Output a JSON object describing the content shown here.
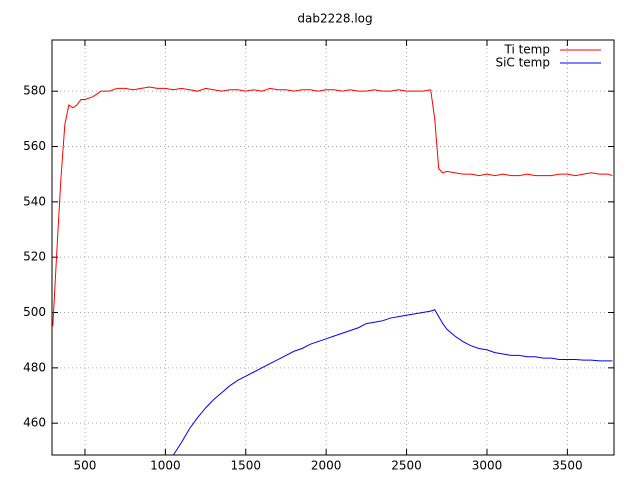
{
  "chart_data": {
    "type": "line",
    "title": "dab2228.log",
    "x": [
      300,
      325,
      350,
      375,
      400,
      425,
      450,
      475,
      500,
      550,
      600,
      650,
      700,
      750,
      800,
      850,
      900,
      950,
      1000,
      1050,
      1100,
      1150,
      1200,
      1250,
      1300,
      1350,
      1400,
      1450,
      1500,
      1550,
      1600,
      1650,
      1700,
      1750,
      1800,
      1850,
      1900,
      1950,
      2000,
      2050,
      2100,
      2150,
      2200,
      2250,
      2300,
      2350,
      2400,
      2450,
      2500,
      2550,
      2600,
      2650,
      2675,
      2700,
      2725,
      2750,
      2800,
      2850,
      2900,
      2950,
      3000,
      3050,
      3100,
      3150,
      3200,
      3250,
      3300,
      3350,
      3400,
      3450,
      3500,
      3550,
      3600,
      3650,
      3700,
      3750,
      3780
    ],
    "series": [
      {
        "name": "Ti temp",
        "color": "#ff0000",
        "values": [
          495,
          522,
          548,
          568,
          575,
          574,
          575,
          577,
          577,
          578,
          580,
          580,
          581,
          581,
          580.5,
          581,
          581.5,
          581,
          581,
          580.5,
          581,
          580.5,
          580,
          581,
          580.5,
          580,
          580.5,
          580.5,
          580,
          580.5,
          580,
          581,
          580.5,
          580.5,
          580,
          580.5,
          580.5,
          580,
          580.5,
          580.5,
          580,
          580.5,
          580,
          580,
          580.5,
          580,
          580,
          580.5,
          580,
          580,
          580,
          580.5,
          570,
          552,
          550.5,
          551,
          550.5,
          550,
          550,
          549.5,
          550,
          549.5,
          550,
          549.5,
          549.5,
          550,
          549.5,
          549.5,
          549.5,
          550,
          550,
          549.5,
          550,
          550.5,
          550,
          550,
          549.5
        ]
      },
      {
        "name": "SiC temp",
        "color": "#0000ff",
        "values": [
          null,
          null,
          null,
          null,
          null,
          null,
          null,
          null,
          null,
          null,
          null,
          null,
          null,
          null,
          null,
          null,
          null,
          null,
          null,
          448.5,
          453,
          458,
          462,
          465.5,
          468.5,
          471,
          473.5,
          475.5,
          477,
          478.5,
          480,
          481.5,
          483,
          484.5,
          486,
          487,
          488.5,
          489.5,
          490.5,
          491.5,
          492.5,
          493.5,
          494.5,
          496,
          496.5,
          497,
          498,
          498.5,
          499,
          499.5,
          500,
          500.5,
          501,
          498.5,
          496,
          494,
          491.5,
          489.5,
          488,
          487,
          486.5,
          485.5,
          485,
          484.5,
          484.5,
          484,
          484,
          483.5,
          483.5,
          483,
          483,
          483,
          482.8,
          482.8,
          482.5,
          482.5,
          482.5
        ]
      }
    ],
    "xlim": [
      295,
      3790
    ],
    "ylim": [
      448.5,
      598.5
    ],
    "xticks": [
      500,
      1000,
      1500,
      2000,
      2500,
      3000,
      3500
    ],
    "yticks": [
      460,
      480,
      500,
      520,
      540,
      560,
      580
    ],
    "grid": true,
    "legend": "top-right"
  }
}
